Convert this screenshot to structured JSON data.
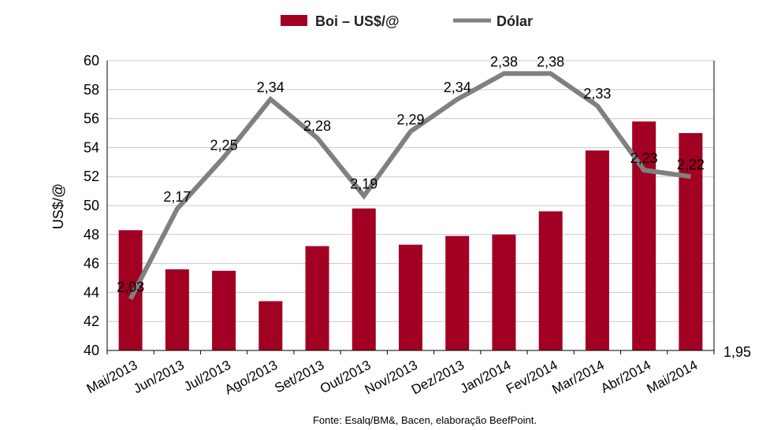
{
  "chart_data": {
    "type": "bar",
    "categories": [
      "Mai/2013",
      "Jun/2013",
      "Jul/2013",
      "Ago/2013",
      "Set/2013",
      "Out/2013",
      "Nov/2013",
      "Dez/2013",
      "Jan/2014",
      "Fev/2014",
      "Mar/2014",
      "Abr/2014",
      "Mai/2014"
    ],
    "series": [
      {
        "name": "Boi – US$/@",
        "type": "bar",
        "axis": "left",
        "color": "#a10023",
        "values": [
          48.3,
          45.6,
          45.5,
          43.4,
          47.2,
          49.8,
          47.3,
          47.9,
          48.0,
          49.6,
          53.8,
          55.8,
          55.0
        ]
      },
      {
        "name": "Dólar",
        "type": "line",
        "axis": "right",
        "color": "#808080",
        "values": [
          2.03,
          2.17,
          2.25,
          2.34,
          2.28,
          2.19,
          2.29,
          2.34,
          2.38,
          2.38,
          2.33,
          2.23,
          2.22
        ],
        "labels": [
          "2,03",
          "2,17",
          "2,25",
          "2,34",
          "2,28",
          "2,19",
          "2,29",
          "2,34",
          "2,38",
          "2,38",
          "2,33",
          "2,23",
          "2,22"
        ]
      }
    ],
    "y_left": {
      "label": "US$/@",
      "ylim": [
        40,
        60
      ],
      "ticks": [
        "40",
        "42",
        "44",
        "46",
        "48",
        "50",
        "52",
        "54",
        "56",
        "58",
        "60"
      ]
    },
    "y_right": {
      "ylim": [
        1.95,
        2.4
      ],
      "ticks": [
        "1,95"
      ]
    },
    "grid": true,
    "legend_position": "top-center",
    "source": "Fonte:  Esalq/BM&,  Bacen,  elaboração  BeefPoint."
  }
}
